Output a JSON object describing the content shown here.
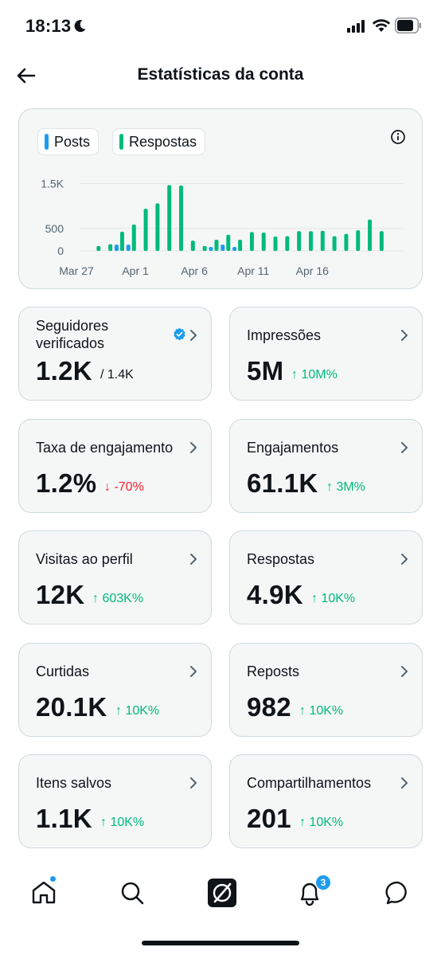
{
  "status_bar": {
    "time": "18:13"
  },
  "header": {
    "title": "Estatísticas da conta"
  },
  "legend": [
    {
      "label": "Posts",
      "color": "#1d9bf0"
    },
    {
      "label": "Respostas",
      "color": "#00ba7c"
    }
  ],
  "chart_data": {
    "type": "bar",
    "y_ticks": [
      "1.5K",
      "500",
      "0"
    ],
    "x_tick_labels": [
      "Mar 27",
      "Apr 1",
      "Apr 6",
      "Apr 11",
      "Apr 16"
    ],
    "ylim": [
      0,
      1600
    ],
    "grid": true,
    "series": [
      {
        "name": "Posts",
        "color": "#1d9bf0",
        "values": [
          0,
          0,
          0,
          140,
          140,
          0,
          0,
          0,
          0,
          0,
          0,
          90,
          140,
          90,
          0,
          0,
          0,
          0,
          0,
          0,
          0,
          0,
          0,
          0,
          0,
          0,
          0,
          0
        ]
      },
      {
        "name": "Respostas",
        "color": "#00ba7c",
        "values": [
          0,
          110,
          150,
          430,
          590,
          940,
          1060,
          1470,
          1460,
          230,
          110,
          250,
          360,
          250,
          420,
          410,
          320,
          330,
          440,
          440,
          450,
          330,
          380,
          460,
          700,
          440,
          0,
          0
        ]
      }
    ]
  },
  "stats": [
    {
      "label": "Seguidores verificados",
      "value": "1.2K",
      "extra": "/ 1.4K",
      "extra_type": "total",
      "verified": true
    },
    {
      "label": "Impressões",
      "value": "5M",
      "extra": "↑ 10M%",
      "extra_type": "up"
    },
    {
      "label": "Taxa de engajamento",
      "value": "1.2%",
      "extra": "↓ -70%",
      "extra_type": "down"
    },
    {
      "label": "Engajamentos",
      "value": "61.1K",
      "extra": "↑ 3M%",
      "extra_type": "up"
    },
    {
      "label": "Visitas ao perfil",
      "value": "12K",
      "extra": "↑ 603K%",
      "extra_type": "up"
    },
    {
      "label": "Respostas",
      "value": "4.9K",
      "extra": "↑ 10K%",
      "extra_type": "up"
    },
    {
      "label": "Curtidas",
      "value": "20.1K",
      "extra": "↑ 10K%",
      "extra_type": "up"
    },
    {
      "label": "Reposts",
      "value": "982",
      "extra": "↑ 10K%",
      "extra_type": "up"
    },
    {
      "label": "Itens salvos",
      "value": "1.1K",
      "extra": "↑ 10K%",
      "extra_type": "up"
    },
    {
      "label": "Compartilhamentos",
      "value": "201",
      "extra": "↑ 10K%",
      "extra_type": "up"
    }
  ],
  "tabbar": {
    "items": [
      "home-icon",
      "search-icon",
      "grok-icon",
      "notifications-icon",
      "messages-icon"
    ],
    "notifications_badge": "3"
  }
}
